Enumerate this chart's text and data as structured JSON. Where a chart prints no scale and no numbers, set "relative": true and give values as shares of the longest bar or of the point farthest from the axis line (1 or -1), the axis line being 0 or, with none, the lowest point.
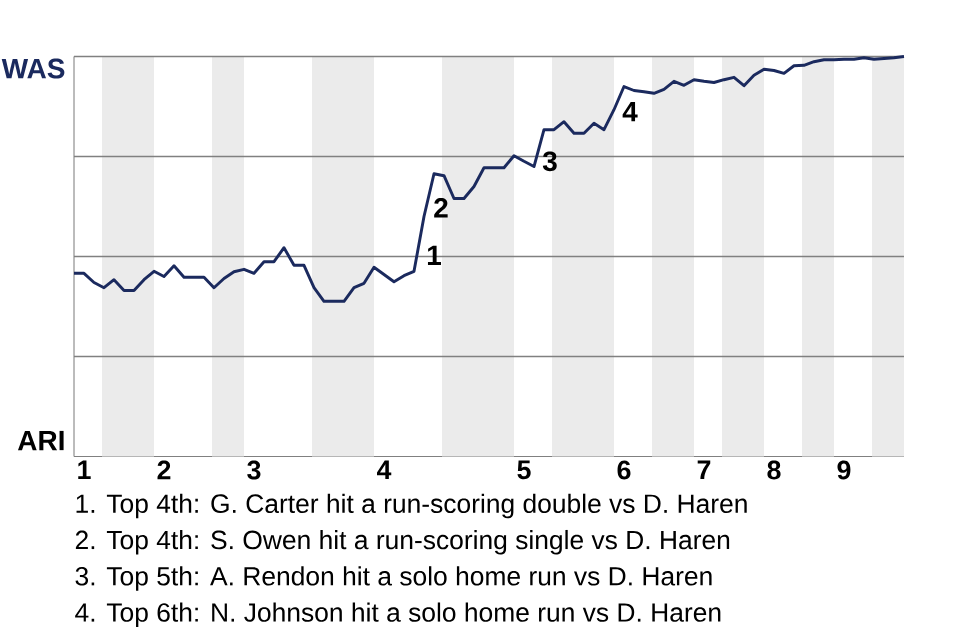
{
  "chart_data": {
    "type": "line",
    "relative": true,
    "categories": [
      null,
      "1",
      null,
      null,
      null,
      null,
      null,
      null,
      null,
      "2",
      null,
      null,
      null,
      null,
      null,
      null,
      null,
      null,
      "3",
      null,
      null,
      null,
      null,
      null,
      null,
      null,
      null,
      null,
      null,
      null,
      null,
      "4",
      null,
      null,
      null,
      null,
      null,
      null,
      null,
      null,
      null,
      null,
      null,
      null,
      null,
      "5",
      null,
      null,
      null,
      null,
      null,
      null,
      null,
      null,
      null,
      "6",
      null,
      null,
      null,
      null,
      null,
      null,
      null,
      "7",
      null,
      null,
      null,
      null,
      null,
      null,
      "8",
      null,
      null,
      null,
      null,
      null,
      null,
      "9",
      null,
      null,
      null,
      null,
      null,
      null
    ],
    "grid": "y",
    "series": [
      {
        "color": "#1b2a5e",
        "values": [
          0.458,
          0.458,
          0.435,
          0.422,
          0.442,
          0.415,
          0.415,
          0.442,
          0.463,
          0.45,
          0.477,
          0.448,
          0.448,
          0.448,
          0.422,
          0.445,
          0.462,
          0.468,
          0.458,
          0.487,
          0.487,
          0.522,
          0.478,
          0.478,
          0.422,
          0.388,
          0.388,
          0.388,
          0.422,
          0.433,
          0.473,
          0.455,
          0.437,
          0.452,
          0.463,
          0.6,
          0.707,
          0.702,
          0.645,
          0.645,
          0.675,
          0.722,
          0.722,
          0.722,
          0.752,
          0.738,
          0.725,
          0.817,
          0.817,
          0.837,
          0.808,
          0.808,
          0.833,
          0.817,
          0.867,
          0.925,
          0.915,
          0.912,
          0.908,
          0.918,
          0.938,
          0.928,
          0.942,
          0.938,
          0.935,
          0.942,
          0.948,
          0.927,
          0.953,
          0.968,
          0.965,
          0.958,
          0.977,
          0.978,
          0.987,
          0.992,
          0.992,
          0.993,
          0.993,
          0.997,
          0.993,
          0.995,
          0.997,
          1
        ]
      }
    ],
    "annotations": [
      "WAS",
      "ARI",
      "1",
      "2",
      "3",
      "4",
      "1. Top 4th: G. Carter hit a run-scoring double vs D. Haren",
      "2. Top 4th: S. Owen hit a run-scoring single vs D. Haren",
      "3. Top 5th: A. Rendon hit a solo home run vs D. Haren",
      "4. Top 6th: N. Johnson hit a solo home run vs D. Haren"
    ]
  }
}
